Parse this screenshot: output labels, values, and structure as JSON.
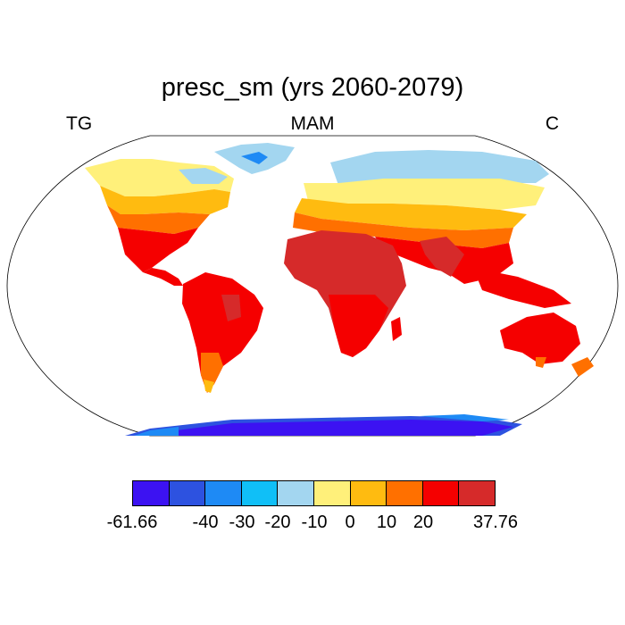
{
  "title": "presc_sm (yrs 2060-2079)",
  "left_label": "TG",
  "center_label": "MAM",
  "right_label": "C",
  "colorbar": {
    "colors": [
      "#3c12f2",
      "#2d52e0",
      "#1e8af5",
      "#10bff7",
      "#a3d6f0",
      "#fff07a",
      "#ffbb10",
      "#ff7000",
      "#f50000",
      "#d62a2a"
    ],
    "tick_labels": [
      "-61.66",
      "-40",
      "-30",
      "-20",
      "-10",
      "0",
      "10",
      "20",
      "37.76"
    ]
  },
  "map": {
    "projection": "robinson",
    "ocean_color": "#ffffff",
    "coastline_color": "#000000"
  }
}
